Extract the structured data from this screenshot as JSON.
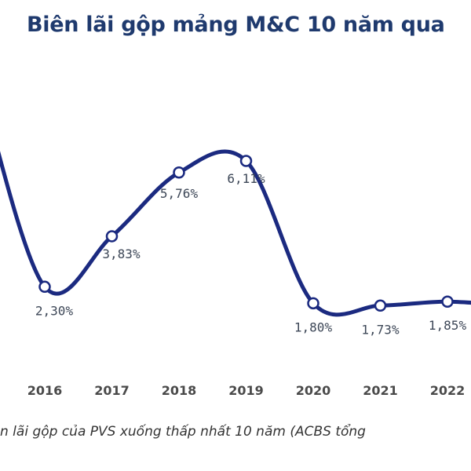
{
  "chart_data": {
    "type": "line",
    "title": "Biên lãi gộp mảng M&C 10 năm qua",
    "categories": [
      "2016",
      "2017",
      "2018",
      "2019",
      "2020",
      "2021",
      "2022"
    ],
    "series": [
      {
        "values": [
          2.3,
          3.83,
          5.76,
          6.11,
          1.8,
          1.73,
          1.85
        ],
        "labels": [
          "2,30%",
          "3,83%",
          "5,76%",
          "6,11%",
          "1,80%",
          "1,73%",
          "1,85%"
        ],
        "color": "#1b2a80"
      }
    ],
    "grid": false,
    "legend": "none"
  },
  "caption": "n lãi gộp của PVS xuống thấp nhất 10 năm (ACBS tổng",
  "colors": {
    "line": "#1b2a80",
    "title": "#1f3a6e",
    "marker_fill": "#ffffff"
  }
}
